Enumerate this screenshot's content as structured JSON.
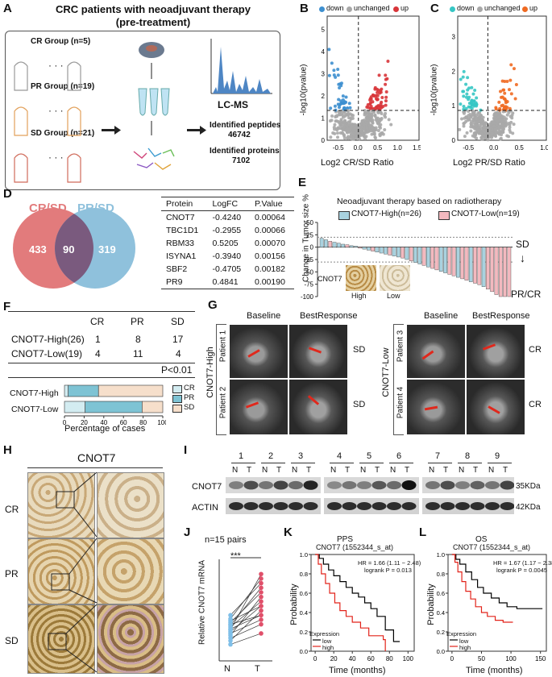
{
  "panels": [
    "A",
    "B",
    "C",
    "D",
    "E",
    "F",
    "G",
    "H",
    "I",
    "J",
    "K",
    "L"
  ],
  "a": {
    "title": "CRC patients with neoadjuvant therapy\n(pre-treatment)",
    "groups": [
      "CR Group (n=5)",
      "PR Group (n=19)",
      "SD Group (n=21)"
    ],
    "dots": "· · ·",
    "lcms": "LC-MS",
    "peptides_label": "Identified peptides",
    "peptides_value": "46742",
    "proteins_label": "Identified proteins",
    "proteins_value": "7102"
  },
  "b": {
    "legend": [
      "down",
      "unchanged",
      "up"
    ],
    "xlabel": "Log2 CR/SD Ratio",
    "ylabel": "-log10(pvalue)",
    "xticks": [
      "-0.5",
      "0.0",
      "0.5",
      "1.0",
      "1.5"
    ],
    "yticks": [
      "0",
      "1",
      "2",
      "3",
      "4",
      "5"
    ]
  },
  "c": {
    "legend": [
      "down",
      "unchanged",
      "up"
    ],
    "xlabel": "Log2 PR/SD Ratio",
    "ylabel": "-log10(pvalue)",
    "xticks": [
      "-0.5",
      "0.0",
      "0.5",
      "1.0"
    ],
    "yticks": [
      "0",
      "1",
      "2",
      "3"
    ]
  },
  "d": {
    "venn_left": "CR/SD",
    "venn_right": "PR/SD",
    "left_only": "433",
    "overlap": "90",
    "right_only": "319",
    "headers": [
      "Protein",
      "LogFC",
      "P.Value"
    ],
    "rows": [
      [
        "CNOT7",
        "-0.4240",
        "0.00064"
      ],
      [
        "TBC1D1",
        "-0.2955",
        "0.00066"
      ],
      [
        "RBM33",
        "0.5205",
        "0.00070"
      ],
      [
        "ISYNA1",
        "-0.3940",
        "0.00156"
      ],
      [
        "SBF2",
        "-0.4705",
        "0.00182"
      ],
      [
        "PR9",
        "0.4841",
        "0.00190"
      ]
    ]
  },
  "e": {
    "title": "Neoadjuvant therapy based on radiotherapy",
    "legend_high": "CNOT7-High(n=26)",
    "legend_low": "CNOT7-Low(n=19)",
    "ylabel": "Change in Tumor size %",
    "yticks": [
      "50",
      "25",
      "0",
      "-25",
      "-50",
      "-75",
      "-100"
    ],
    "sd_label": "SD",
    "prcr_label": "PR/CR",
    "inset_label": "CNOT7",
    "inset_high": "High",
    "inset_low": "Low",
    "colors": {
      "high": "#a9d2df",
      "low": "#f3b9bf"
    }
  },
  "f": {
    "col_headers": [
      "CR",
      "PR",
      "SD"
    ],
    "rows": [
      {
        "label": "CNOT7-High(26)",
        "values": [
          "1",
          "8",
          "17"
        ]
      },
      {
        "label": "CNOT7-Low(19)",
        "values": [
          "4",
          "11",
          "4"
        ]
      }
    ],
    "pvalue": "P<0.01",
    "bar_labels": [
      "CNOT7-High",
      "CNOT7-Low"
    ],
    "xlabel": "Percentage of cases",
    "xticks": [
      "0",
      "20",
      "40",
      "60",
      "80",
      "100"
    ],
    "legend": [
      "CR",
      "PR",
      "SD"
    ],
    "colors": {
      "cr": "#d3ecf1",
      "pr": "#7ec3d4",
      "sd": "#f6dfcb"
    }
  },
  "g": {
    "col_baseline": "Baseline",
    "col_best": "BestResponse",
    "group_high": "CNOT7-High",
    "group_low": "CNOT7-Low",
    "patients": [
      "Patient 1",
      "Patient 2",
      "Patient 3",
      "Patient 4"
    ],
    "outcomes": [
      "SD",
      "SD",
      "CR",
      "CR"
    ]
  },
  "h": {
    "title": "CNOT7",
    "rows": [
      "CR",
      "PR",
      "SD"
    ]
  },
  "i": {
    "lanes": [
      "1",
      "2",
      "3",
      "4",
      "5",
      "6",
      "7",
      "8",
      "9"
    ],
    "nt": [
      "N",
      "T"
    ],
    "bands": [
      "CNOT7",
      "ACTIN"
    ],
    "sizes": [
      "35KDa",
      "42KDa"
    ]
  },
  "j": {
    "title": "n=15 pairs",
    "sig": "***",
    "ylabel": "Relative CNOT7 mRNA",
    "xticks": [
      "N",
      "T"
    ]
  },
  "k": {
    "title": "PPS",
    "subtitle": "CNOT7 (1552344_s_at)",
    "hr": "HR = 1.66 (1.11 − 2.48)",
    "logrank": "logrank P = 0.013",
    "xlabel": "Time (months)",
    "ylabel": "Probability",
    "xticks": [
      "0",
      "20",
      "40",
      "60",
      "80",
      "100"
    ],
    "yticks": [
      "0.0",
      "0.2",
      "0.4",
      "0.6",
      "0.8",
      "1.0"
    ],
    "legend_title": "Expression",
    "legend": [
      "low",
      "high"
    ]
  },
  "l": {
    "title": "OS",
    "subtitle": "CNOT7 (1552344_s_at)",
    "hr": "HR = 1.67 (1.17 − 2.38)",
    "logrank": "logrank P = 0.0045",
    "xlabel": "Time (months)",
    "ylabel": "Probability",
    "xticks": [
      "0",
      "50",
      "100",
      "150"
    ],
    "yticks": [
      "0.0",
      "0.2",
      "0.4",
      "0.6",
      "0.8",
      "1.0"
    ],
    "legend_title": "Expression",
    "legend": [
      "low",
      "high"
    ]
  },
  "colors": {
    "down": "#3d8fcf",
    "unchanged": "#a8a8a8",
    "up": "#d8353a",
    "teal": "#36c6c4",
    "orange": "#ef6a22",
    "venn_left": "#e27b7c",
    "venn_right": "#8fc1dc",
    "venn_mid": "#7a5a7e"
  }
}
